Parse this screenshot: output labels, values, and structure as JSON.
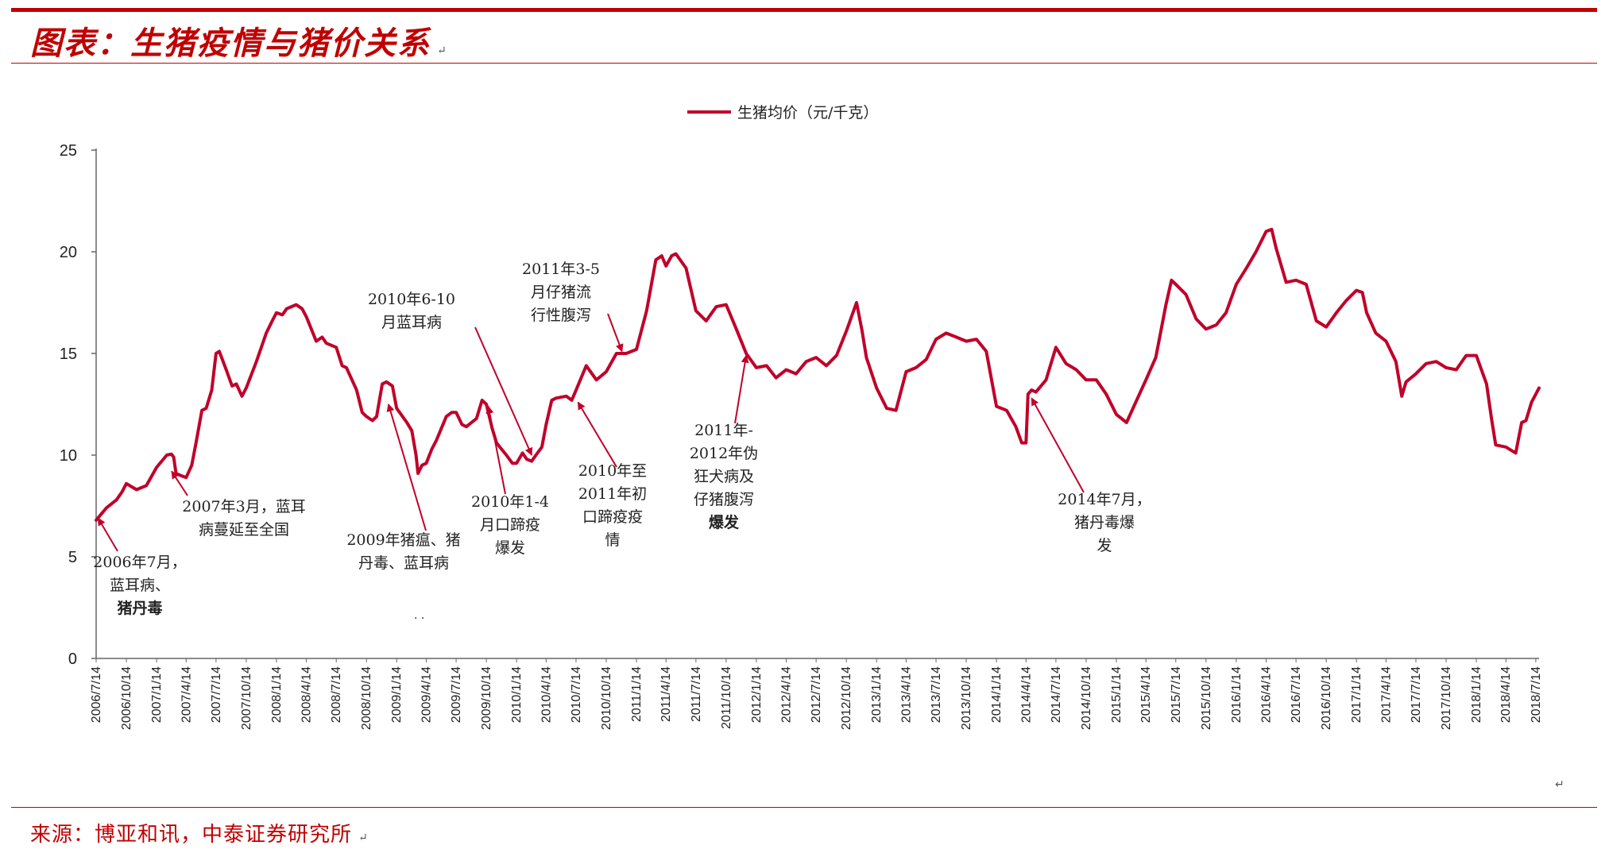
{
  "header": {
    "title": "图表：生猪疫情与猪价关系",
    "title_mark": "↵"
  },
  "footer": {
    "source": "来源：博亚和讯，中泰证券研究所",
    "source_mark": "↵",
    "stray_mark": "↵"
  },
  "colors": {
    "accent": "#c00000",
    "series": "#c0002a"
  },
  "chart_data": {
    "type": "line",
    "title": "",
    "xlabel": "",
    "ylabel": "",
    "ylim": [
      0,
      25
    ],
    "yticks": [
      0,
      5,
      10,
      15,
      20,
      25
    ],
    "grid": false,
    "legend_position": "top-center",
    "x_tick_labels": [
      "2006/7/14",
      "2006/10/14",
      "2007/1/14",
      "2007/4/14",
      "2007/7/14",
      "2007/10/14",
      "2008/1/14",
      "2008/4/14",
      "2008/7/14",
      "2008/10/14",
      "2009/1/14",
      "2009/4/14",
      "2009/7/14",
      "2009/10/14",
      "2010/1/14",
      "2010/4/14",
      "2010/7/14",
      "2010/10/14",
      "2011/1/14",
      "2011/4/14",
      "2011/7/14",
      "2011/10/14",
      "2012/1/14",
      "2012/4/14",
      "2012/7/14",
      "2012/10/14",
      "2013/1/14",
      "2013/4/14",
      "2013/7/14",
      "2013/10/14",
      "2014/1/14",
      "2014/4/14",
      "2014/7/14",
      "2014/10/14",
      "2015/1/14",
      "2015/4/14",
      "2015/7/14",
      "2015/10/14",
      "2016/1/14",
      "2016/4/14",
      "2016/7/14",
      "2016/10/14",
      "2017/1/14",
      "2017/4/14",
      "2017/7/14",
      "2017/10/14",
      "2018/1/14",
      "2018/4/14",
      "2018/7/14"
    ],
    "series": [
      {
        "name": "生猪均价（元/千克）",
        "x_start": "2006-07-14",
        "points": [
          [
            "2006-07-14",
            6.8
          ],
          [
            "2006-08-14",
            7.4
          ],
          [
            "2006-09-14",
            7.8
          ],
          [
            "2006-10-01",
            8.2
          ],
          [
            "2006-10-14",
            8.6
          ],
          [
            "2006-11-14",
            8.3
          ],
          [
            "2006-12-14",
            8.5
          ],
          [
            "2007-01-14",
            9.4
          ],
          [
            "2007-02-14",
            10.0
          ],
          [
            "2007-02-28",
            10.05
          ],
          [
            "2007-03-07",
            9.9
          ],
          [
            "2007-03-14",
            9.1
          ],
          [
            "2007-03-28",
            9.0
          ],
          [
            "2007-04-14",
            8.9
          ],
          [
            "2007-05-01",
            9.5
          ],
          [
            "2007-05-14",
            10.6
          ],
          [
            "2007-06-01",
            12.2
          ],
          [
            "2007-06-14",
            12.3
          ],
          [
            "2007-07-01",
            13.2
          ],
          [
            "2007-07-14",
            15.0
          ],
          [
            "2007-07-24",
            15.1
          ],
          [
            "2007-08-14",
            14.2
          ],
          [
            "2007-09-01",
            13.4
          ],
          [
            "2007-09-14",
            13.5
          ],
          [
            "2007-10-01",
            12.9
          ],
          [
            "2007-10-14",
            13.3
          ],
          [
            "2007-11-14",
            14.6
          ],
          [
            "2007-12-14",
            16.0
          ],
          [
            "2008-01-01",
            16.6
          ],
          [
            "2008-01-14",
            17.0
          ],
          [
            "2008-02-01",
            16.9
          ],
          [
            "2008-02-14",
            17.2
          ],
          [
            "2008-03-14",
            17.4
          ],
          [
            "2008-04-01",
            17.2
          ],
          [
            "2008-04-14",
            16.8
          ],
          [
            "2008-05-14",
            15.6
          ],
          [
            "2008-06-01",
            15.8
          ],
          [
            "2008-06-14",
            15.5
          ],
          [
            "2008-07-14",
            15.3
          ],
          [
            "2008-08-01",
            14.4
          ],
          [
            "2008-08-14",
            14.3
          ],
          [
            "2008-09-14",
            13.2
          ],
          [
            "2008-10-01",
            12.1
          ],
          [
            "2008-10-14",
            11.9
          ],
          [
            "2008-11-01",
            11.7
          ],
          [
            "2008-11-14",
            11.9
          ],
          [
            "2008-12-01",
            13.5
          ],
          [
            "2008-12-14",
            13.6
          ],
          [
            "2009-01-01",
            13.4
          ],
          [
            "2009-01-14",
            12.3
          ],
          [
            "2009-02-14",
            11.6
          ],
          [
            "2009-03-01",
            11.2
          ],
          [
            "2009-03-14",
            10.0
          ],
          [
            "2009-03-20",
            9.1
          ],
          [
            "2009-04-01",
            9.5
          ],
          [
            "2009-04-14",
            9.6
          ],
          [
            "2009-05-01",
            10.3
          ],
          [
            "2009-05-14",
            10.7
          ],
          [
            "2009-06-14",
            11.9
          ],
          [
            "2009-07-01",
            12.1
          ],
          [
            "2009-07-14",
            12.1
          ],
          [
            "2009-08-01",
            11.5
          ],
          [
            "2009-08-14",
            11.4
          ],
          [
            "2009-09-14",
            11.8
          ],
          [
            "2009-10-01",
            12.7
          ],
          [
            "2009-10-14",
            12.5
          ],
          [
            "2009-11-01",
            11.3
          ],
          [
            "2009-11-14",
            10.6
          ],
          [
            "2009-12-14",
            10.0
          ],
          [
            "2010-01-01",
            9.6
          ],
          [
            "2010-01-14",
            9.6
          ],
          [
            "2010-02-01",
            10.1
          ],
          [
            "2010-02-14",
            9.8
          ],
          [
            "2010-03-01",
            9.7
          ],
          [
            "2010-03-14",
            10.0
          ],
          [
            "2010-04-01",
            10.4
          ],
          [
            "2010-04-14",
            11.5
          ],
          [
            "2010-05-01",
            12.7
          ],
          [
            "2010-05-14",
            12.8
          ],
          [
            "2010-06-14",
            12.9
          ],
          [
            "2010-07-01",
            12.7
          ],
          [
            "2010-07-14",
            13.2
          ],
          [
            "2010-08-14",
            14.4
          ],
          [
            "2010-09-14",
            13.7
          ],
          [
            "2010-10-14",
            14.1
          ],
          [
            "2010-11-14",
            15.0
          ],
          [
            "2010-12-14",
            15.0
          ],
          [
            "2011-01-14",
            15.2
          ],
          [
            "2011-02-14",
            17.1
          ],
          [
            "2011-03-14",
            19.6
          ],
          [
            "2011-04-01",
            19.8
          ],
          [
            "2011-04-14",
            19.3
          ],
          [
            "2011-05-01",
            19.8
          ],
          [
            "2011-05-14",
            19.9
          ],
          [
            "2011-06-14",
            19.2
          ],
          [
            "2011-07-14",
            17.1
          ],
          [
            "2011-08-14",
            16.6
          ],
          [
            "2011-09-14",
            17.3
          ],
          [
            "2011-10-14",
            17.4
          ],
          [
            "2011-11-14",
            16.2
          ],
          [
            "2011-12-14",
            15.0
          ],
          [
            "2012-01-14",
            14.3
          ],
          [
            "2012-02-14",
            14.4
          ],
          [
            "2012-03-14",
            13.8
          ],
          [
            "2012-04-14",
            14.2
          ],
          [
            "2012-05-14",
            14.0
          ],
          [
            "2012-06-14",
            14.6
          ],
          [
            "2012-07-14",
            14.8
          ],
          [
            "2012-08-14",
            14.4
          ],
          [
            "2012-09-14",
            14.9
          ],
          [
            "2012-10-14",
            16.1
          ],
          [
            "2012-11-14",
            17.5
          ],
          [
            "2012-12-01",
            16.1
          ],
          [
            "2012-12-14",
            14.8
          ],
          [
            "2013-01-14",
            13.3
          ],
          [
            "2013-02-14",
            12.3
          ],
          [
            "2013-03-14",
            12.2
          ],
          [
            "2013-04-14",
            14.1
          ],
          [
            "2013-05-14",
            14.3
          ],
          [
            "2013-06-14",
            14.7
          ],
          [
            "2013-07-14",
            15.7
          ],
          [
            "2013-08-14",
            16.0
          ],
          [
            "2013-09-14",
            15.8
          ],
          [
            "2013-10-14",
            15.6
          ],
          [
            "2013-11-14",
            15.7
          ],
          [
            "2013-12-14",
            15.1
          ],
          [
            "2014-01-14",
            12.4
          ],
          [
            "2014-02-14",
            12.2
          ],
          [
            "2014-03-14",
            11.4
          ],
          [
            "2014-04-01",
            10.6
          ],
          [
            "2014-04-14",
            10.6
          ],
          [
            "2014-04-20",
            13.0
          ],
          [
            "2014-05-01",
            13.2
          ],
          [
            "2014-05-14",
            13.1
          ],
          [
            "2014-06-14",
            13.7
          ],
          [
            "2014-07-14",
            15.3
          ],
          [
            "2014-08-14",
            14.5
          ],
          [
            "2014-09-14",
            14.2
          ],
          [
            "2014-10-14",
            13.7
          ],
          [
            "2014-11-14",
            13.7
          ],
          [
            "2014-12-14",
            13.0
          ],
          [
            "2015-01-14",
            12.0
          ],
          [
            "2015-02-14",
            11.6
          ],
          [
            "2015-03-14",
            12.6
          ],
          [
            "2015-04-14",
            13.7
          ],
          [
            "2015-05-14",
            14.8
          ],
          [
            "2015-06-14",
            17.4
          ],
          [
            "2015-07-01",
            18.6
          ],
          [
            "2015-07-14",
            18.4
          ],
          [
            "2015-08-14",
            17.9
          ],
          [
            "2015-09-14",
            16.7
          ],
          [
            "2015-10-14",
            16.2
          ],
          [
            "2015-11-14",
            16.4
          ],
          [
            "2015-12-14",
            17.0
          ],
          [
            "2016-01-14",
            18.4
          ],
          [
            "2016-02-14",
            19.2
          ],
          [
            "2016-03-14",
            20.0
          ],
          [
            "2016-04-14",
            21.0
          ],
          [
            "2016-05-01",
            21.1
          ],
          [
            "2016-05-14",
            20.2
          ],
          [
            "2016-06-14",
            18.5
          ],
          [
            "2016-07-14",
            18.6
          ],
          [
            "2016-08-14",
            18.4
          ],
          [
            "2016-09-14",
            16.6
          ],
          [
            "2016-10-14",
            16.3
          ],
          [
            "2016-11-14",
            17.0
          ],
          [
            "2016-12-14",
            17.6
          ],
          [
            "2017-01-14",
            18.1
          ],
          [
            "2017-02-01",
            18.0
          ],
          [
            "2017-02-14",
            17.0
          ],
          [
            "2017-03-14",
            16.0
          ],
          [
            "2017-04-14",
            15.6
          ],
          [
            "2017-05-14",
            14.6
          ],
          [
            "2017-06-01",
            12.9
          ],
          [
            "2017-06-14",
            13.6
          ],
          [
            "2017-07-14",
            14.0
          ],
          [
            "2017-08-14",
            14.5
          ],
          [
            "2017-09-14",
            14.6
          ],
          [
            "2017-10-14",
            14.3
          ],
          [
            "2017-11-14",
            14.2
          ],
          [
            "2017-12-14",
            14.9
          ],
          [
            "2018-01-14",
            14.9
          ],
          [
            "2018-02-14",
            13.5
          ],
          [
            "2018-03-01",
            11.8
          ],
          [
            "2018-03-14",
            10.5
          ],
          [
            "2018-04-14",
            10.4
          ],
          [
            "2018-05-14",
            10.1
          ],
          [
            "2018-06-01",
            11.6
          ],
          [
            "2018-06-14",
            11.7
          ],
          [
            "2018-07-01",
            12.6
          ],
          [
            "2018-07-14",
            13.0
          ],
          [
            "2018-07-24",
            13.3
          ]
        ]
      }
    ],
    "annotations": [
      {
        "lines": [
          "2006年7月，",
          "蓝耳病、",
          "猪丹毒"
        ],
        "bold_line": 2,
        "target": [
          "2006-07-20",
          6.9
        ]
      },
      {
        "lines": [
          "2007年3月，蓝耳",
          "病蔓延至全国"
        ],
        "bold_line": -1,
        "target": [
          "2007-03-01",
          9.2
        ]
      },
      {
        "lines": [
          "2009年猪瘟、猪",
          "丹毒、蓝耳病"
        ],
        "bold_line": -1,
        "target": [
          "2008-12-20",
          12.5
        ]
      },
      {
        "lines": [
          "2010年6-10",
          "月蓝耳病"
        ],
        "bold_line": -1,
        "target": [
          "2010-03-01",
          10.0
        ]
      },
      {
        "lines": [
          "2010年1-4",
          "月口蹄疫",
          "爆发"
        ],
        "bold_line": -1,
        "target": [
          "2009-10-20",
          12.4
        ]
      },
      {
        "lines": [
          "2011年3-5",
          "月仔猪流",
          "行性腹泻"
        ],
        "bold_line": -1,
        "target": [
          "2010-12-01",
          15.1
        ]
      },
      {
        "lines": [
          "2010年至",
          "2011年初",
          "口蹄疫疫",
          "情"
        ],
        "bold_line": -1,
        "target": [
          "2010-07-20",
          12.6
        ]
      },
      {
        "lines": [
          "2011年-",
          "2012年伪",
          "狂犬病及",
          "仔猪腹泻",
          "爆发"
        ],
        "bold_line": 4,
        "target": [
          "2011-12-14",
          14.9
        ]
      },
      {
        "lines": [
          "2014年7月，",
          "猪丹毒爆",
          "发"
        ],
        "bold_line": -1,
        "target": [
          "2014-05-01",
          12.8
        ]
      }
    ],
    "stray_text": "· ·"
  }
}
